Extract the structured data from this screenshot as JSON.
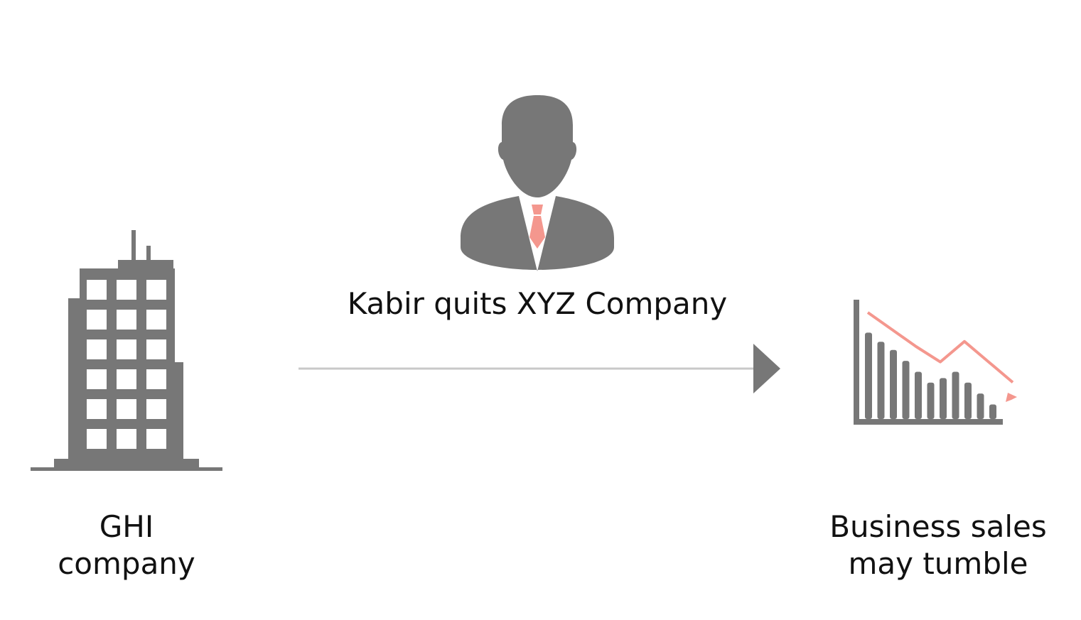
{
  "company": {
    "label_line1": "GHI",
    "label_line2": "company"
  },
  "person": {
    "label": "Kabir quits XYZ Company"
  },
  "outcome": {
    "label_line1": "Business sales",
    "label_line2": "may tumble"
  },
  "colors": {
    "icon_gray": "#777777",
    "accent_salmon": "#f4978e",
    "arrow_gray": "#c8c8c8"
  },
  "icons": {
    "company": "office-building-icon",
    "person": "businessman-icon",
    "outcome": "declining-bar-chart-icon",
    "connector": "right-arrow-icon"
  },
  "outcome_chart": {
    "bar_levels": [
      0.95,
      0.85,
      0.76,
      0.64,
      0.52,
      0.4,
      0.45,
      0.52,
      0.4,
      0.28,
      0.16
    ],
    "trend_line": [
      1.0,
      0.8,
      0.6,
      0.42,
      0.66,
      0.42,
      0.18
    ]
  }
}
